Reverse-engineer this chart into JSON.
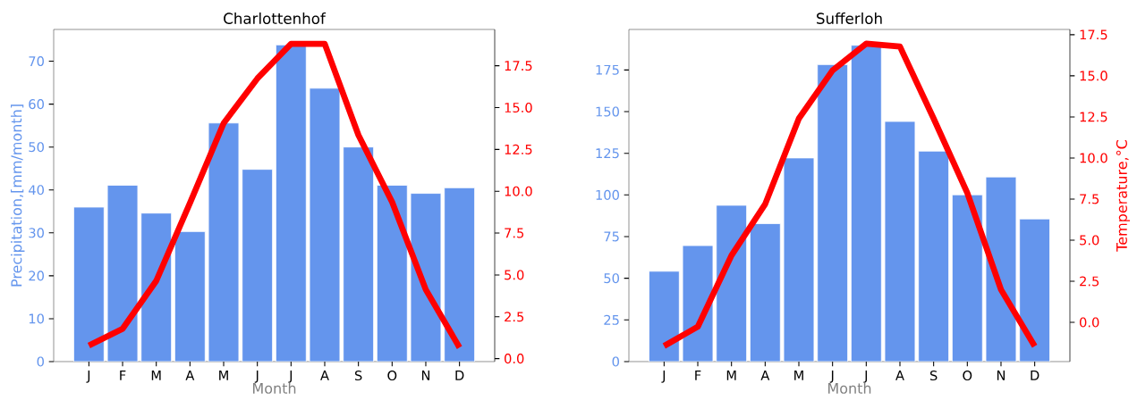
{
  "chart_data": [
    {
      "type": "bar",
      "title": "Charlottenhof",
      "xlabel": "Month",
      "ylabel": "Precipitation,[mm/month]",
      "categories": [
        "J",
        "F",
        "M",
        "A",
        "M",
        "J",
        "J",
        "A",
        "S",
        "O",
        "N",
        "D"
      ],
      "series": [
        {
          "color": "#6495ed",
          "values": [
            36.0,
            41.1,
            34.6,
            30.3,
            55.6,
            44.8,
            73.8,
            63.7,
            50.0,
            41.1,
            39.2,
            40.5
          ]
        },
        {
          "type": "line",
          "axis": "y2",
          "color": "#ff0000",
          "values": [
            0.78,
            1.78,
            4.65,
            9.3,
            14.07,
            16.74,
            18.81,
            18.81,
            13.36,
            9.36,
            4.12,
            0.66
          ]
        }
      ],
      "ylim": [
        0,
        77.4
      ],
      "yticks": [
        0,
        10,
        20,
        30,
        40,
        50,
        60,
        70
      ],
      "y2lim": [
        -0.18,
        19.67
      ],
      "y2ticks": [
        {
          "value": 0,
          "label": "0.0"
        },
        2.5,
        {
          "value": 5,
          "label": "5.0"
        },
        7.5,
        {
          "value": 10,
          "label": "10.0"
        },
        12.5,
        {
          "value": 15,
          "label": "15.0"
        },
        17.5
      ]
    },
    {
      "type": "bar",
      "title": "Sufferloh",
      "xlabel": "Month",
      "y2label": "Temperature,°C",
      "categories": [
        "J",
        "F",
        "M",
        "A",
        "M",
        "J",
        "J",
        "A",
        "S",
        "O",
        "N",
        "D"
      ],
      "series": [
        {
          "color": "#6495ed",
          "values": [
            54.2,
            69.6,
            93.8,
            82.8,
            122.2,
            178.2,
            189.8,
            144.1,
            126.3,
            100.1,
            110.8,
            85.6
          ]
        },
        {
          "type": "line",
          "axis": "y2",
          "color": "#ff0000",
          "values": [
            -1.44,
            -0.27,
            4.07,
            7.19,
            12.4,
            15.33,
            16.96,
            16.78,
            12.4,
            7.87,
            1.99,
            -1.45
          ]
        }
      ],
      "ylim": [
        0,
        199.3
      ],
      "yticks": [
        0,
        25,
        50,
        75,
        100,
        125,
        150,
        175
      ],
      "y2lim": [
        -2.39,
        17.82
      ],
      "y2ticks": [
        {
          "value": 0,
          "label": "0.0"
        },
        2.5,
        {
          "value": 5,
          "label": "5.0"
        },
        7.5,
        {
          "value": 10,
          "label": "10.0"
        },
        12.5,
        {
          "value": 15,
          "label": "15.0"
        },
        17.5
      ]
    }
  ]
}
